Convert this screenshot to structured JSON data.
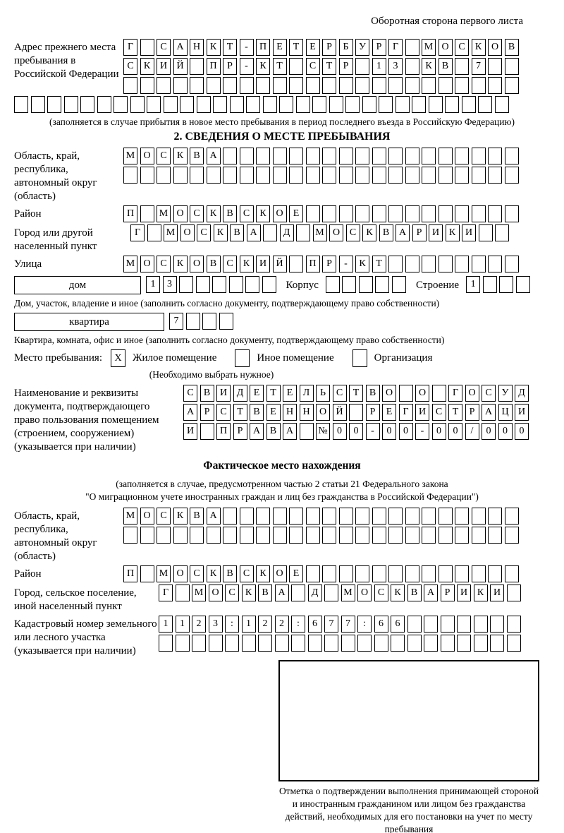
{
  "page": {
    "back_note": "Оборотная сторона первого листа"
  },
  "prev_address": {
    "label": "Адрес прежнего места пребывания в Российской Федерации",
    "rows": [
      {
        "value": "Г САНКТ-ПЕТЕРБУРГ МОСКОВ",
        "cells": 24
      },
      {
        "value": "СКИЙ ПР-КТ СТР 13 КВ 7",
        "cells": 24
      },
      {
        "value": "",
        "cells": 24
      },
      {
        "value": "",
        "cells": 30
      }
    ],
    "note": "(заполняется в случае прибытия в новое место пребывания в период последнего въезда в Российскую Федерацию)"
  },
  "section2": {
    "title": "2. СВЕДЕНИЯ О МЕСТЕ ПРЕБЫВАНИЯ",
    "region": {
      "label": "Область, край, республика, автономный округ (область)",
      "rows": [
        {
          "value": "МОСКВА",
          "cells": 24
        },
        {
          "value": "",
          "cells": 24
        }
      ]
    },
    "district": {
      "label": "Район",
      "row": {
        "value": "П МОСКВСКОЕ",
        "cells": 24
      }
    },
    "city": {
      "label": "Город или другой населенный пункт",
      "row": {
        "value": "Г МОСКВА Д МОСКВАРИКИ",
        "cells": 23
      }
    },
    "street": {
      "label": "Улица",
      "row": {
        "value": "МОСКОВСКИЙ ПР-КТ",
        "cells": 24
      }
    },
    "house": {
      "box_label": "дом",
      "number": {
        "value": "13",
        "cells": 8
      },
      "korpus_label": "Корпус",
      "korpus": {
        "value": "",
        "cells": 5
      },
      "stroenie_label": "Строение",
      "stroenie": {
        "value": "1",
        "cells": 4
      },
      "note": "Дом, участок, владение и иное (заполнить согласно документу, подтверждающему право собственности)"
    },
    "apartment": {
      "box_label": "квартира",
      "number": {
        "value": "7",
        "cells": 4
      },
      "note": "Квартира, комната, офис и иное (заполнить согласно документу, подтверждающему право собственности)"
    },
    "stay_type": {
      "label": "Место пребывания:",
      "options": [
        {
          "label": "Жилое помещение",
          "mark": "X"
        },
        {
          "label": "Иное помещение",
          "mark": ""
        },
        {
          "label": "Организация",
          "mark": ""
        }
      ],
      "note": "(Необходимо выбрать нужное)"
    },
    "document": {
      "label": "Наименование и реквизиты документа, подтверждающего право пользования помещением (строением, сооружением) (указывается при наличии)",
      "rows": [
        {
          "value": "СВИДЕТЕЛЬСТВО О ГОСУД",
          "cells": 21
        },
        {
          "value": "АРСТВЕННОЙ РЕГИСТРАЦИ",
          "cells": 21
        },
        {
          "value": "И ПРАВА №00-00-00/000",
          "cells": 21
        }
      ]
    }
  },
  "actual_location": {
    "title": "Фактическое место нахождения",
    "note_line1": "(заполняется в случае, предусмотренном частью 2 статьи 21 Федерального закона",
    "note_line2": "\"О миграционном учете иностранных граждан и лиц без гражданства в Российской Федерации\")",
    "region": {
      "label": "Область, край, республика, автономный округ (область)",
      "rows": [
        {
          "value": "МОСКВА",
          "cells": 24
        },
        {
          "value": "",
          "cells": 24
        }
      ]
    },
    "district": {
      "label": "Район",
      "row": {
        "value": "П МОСКВСКОЕ",
        "cells": 24
      }
    },
    "city": {
      "label": "Город, сельское поселение, иной населенный пункт",
      "row": {
        "value": "Г МОСКВА Д МОСКВАРИКИ",
        "cells": 22
      }
    },
    "cadastral": {
      "label": "Кадастровый номер земельного или лесного участка (указывается при наличии)",
      "rows": [
        {
          "value": "1123:122:677:66",
          "cells": 22
        },
        {
          "value": "",
          "cells": 22
        }
      ]
    },
    "stamp_caption": "Отметка о подтверждении выполнения принимающей стороной и иностранным гражданином или лицом без гражданства действий, необходимых для его постановки на учет по месту пребывания"
  }
}
